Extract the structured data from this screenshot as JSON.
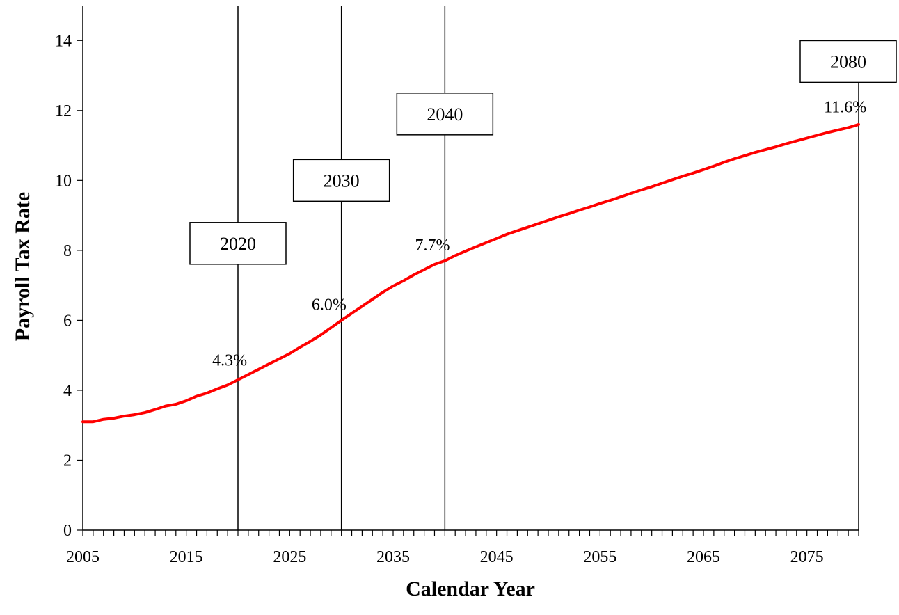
{
  "chart_data": {
    "type": "line",
    "title": "",
    "xlabel": "Calendar Year",
    "ylabel": "Payroll Tax Rate",
    "xlim": [
      2005,
      2080
    ],
    "ylim": [
      0,
      15
    ],
    "x_ticks": [
      2005,
      2015,
      2025,
      2035,
      2045,
      2055,
      2065,
      2075
    ],
    "y_ticks": [
      0,
      2,
      4,
      6,
      8,
      10,
      12,
      14
    ],
    "grid": false,
    "legend": "none",
    "series": [
      {
        "color": "#ff0000",
        "x": [
          2005,
          2006,
          2007,
          2008,
          2009,
          2010,
          2011,
          2012,
          2013,
          2014,
          2015,
          2016,
          2017,
          2018,
          2019,
          2020,
          2021,
          2022,
          2023,
          2024,
          2025,
          2026,
          2027,
          2028,
          2029,
          2030,
          2031,
          2032,
          2033,
          2034,
          2035,
          2036,
          2037,
          2038,
          2039,
          2040,
          2041,
          2042,
          2043,
          2044,
          2045,
          2046,
          2047,
          2048,
          2049,
          2050,
          2051,
          2052,
          2053,
          2054,
          2055,
          2056,
          2057,
          2058,
          2059,
          2060,
          2061,
          2062,
          2063,
          2064,
          2065,
          2066,
          2067,
          2068,
          2069,
          2070,
          2071,
          2072,
          2073,
          2074,
          2075,
          2076,
          2077,
          2078,
          2079,
          2080
        ],
        "y": [
          3.1,
          3.1,
          3.17,
          3.2,
          3.26,
          3.3,
          3.36,
          3.45,
          3.55,
          3.6,
          3.7,
          3.83,
          3.92,
          4.04,
          4.15,
          4.3,
          4.45,
          4.6,
          4.75,
          4.9,
          5.05,
          5.23,
          5.4,
          5.58,
          5.79,
          6.0,
          6.2,
          6.4,
          6.6,
          6.8,
          6.98,
          7.13,
          7.3,
          7.45,
          7.6,
          7.7,
          7.85,
          7.98,
          8.1,
          8.22,
          8.34,
          8.46,
          8.56,
          8.66,
          8.76,
          8.86,
          8.96,
          9.05,
          9.15,
          9.24,
          9.34,
          9.43,
          9.53,
          9.63,
          9.73,
          9.82,
          9.92,
          10.02,
          10.12,
          10.21,
          10.31,
          10.41,
          10.52,
          10.62,
          10.71,
          10.8,
          10.88,
          10.96,
          11.05,
          11.13,
          11.21,
          11.29,
          11.37,
          11.44,
          11.51,
          11.6
        ]
      }
    ],
    "markers": [
      {
        "year": 2020,
        "box_label": "2020",
        "value_label": "4.3%",
        "box_y": 8.2,
        "label_y": 4.7,
        "label_dx": -0.8
      },
      {
        "year": 2030,
        "box_label": "2030",
        "value_label": "6.0%",
        "box_y": 10.0,
        "label_y": 6.3,
        "label_dx": -1.2
      },
      {
        "year": 2040,
        "box_label": "2040",
        "value_label": "7.7%",
        "box_y": 11.9,
        "label_y": 8.0,
        "label_dx": -1.2
      },
      {
        "year": 2080,
        "box_label": "2080",
        "value_label": "11.6%",
        "box_y": 13.4,
        "label_y": 11.95,
        "label_dx": -1.3
      }
    ]
  }
}
